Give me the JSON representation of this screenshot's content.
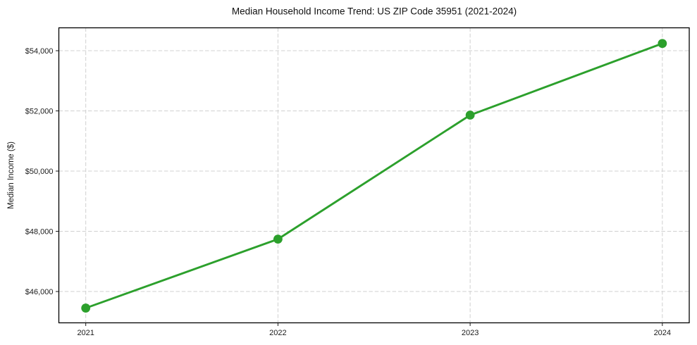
{
  "chart_data": {
    "type": "line",
    "title": "Median Household Income Trend: US ZIP Code 35951 (2021-2024)",
    "xlabel": "",
    "ylabel": "Median Income ($)",
    "x": [
      2021,
      2022,
      2023,
      2024
    ],
    "values": [
      45450,
      47740,
      51860,
      54240
    ],
    "xticks": [
      2021,
      2022,
      2023,
      2024
    ],
    "xtick_labels": [
      "2021",
      "2022",
      "2023",
      "2024"
    ],
    "yticks": [
      46000,
      48000,
      50000,
      52000,
      54000
    ],
    "ytick_labels": [
      "$46,000",
      "$48,000",
      "$50,000",
      "$52,000",
      "$54,000"
    ],
    "xlim": [
      2020.86,
      2024.14
    ],
    "ylim": [
      44960,
      54760
    ],
    "grid": true,
    "grid_style": "dashed",
    "legend": "none",
    "marker": "circle",
    "colors": {
      "line": "#2ca02c",
      "marker": "#2ca02c",
      "grid": "#d0d0d0",
      "spine": "#000000",
      "text": "#1a1a1a",
      "background": "#ffffff"
    }
  }
}
